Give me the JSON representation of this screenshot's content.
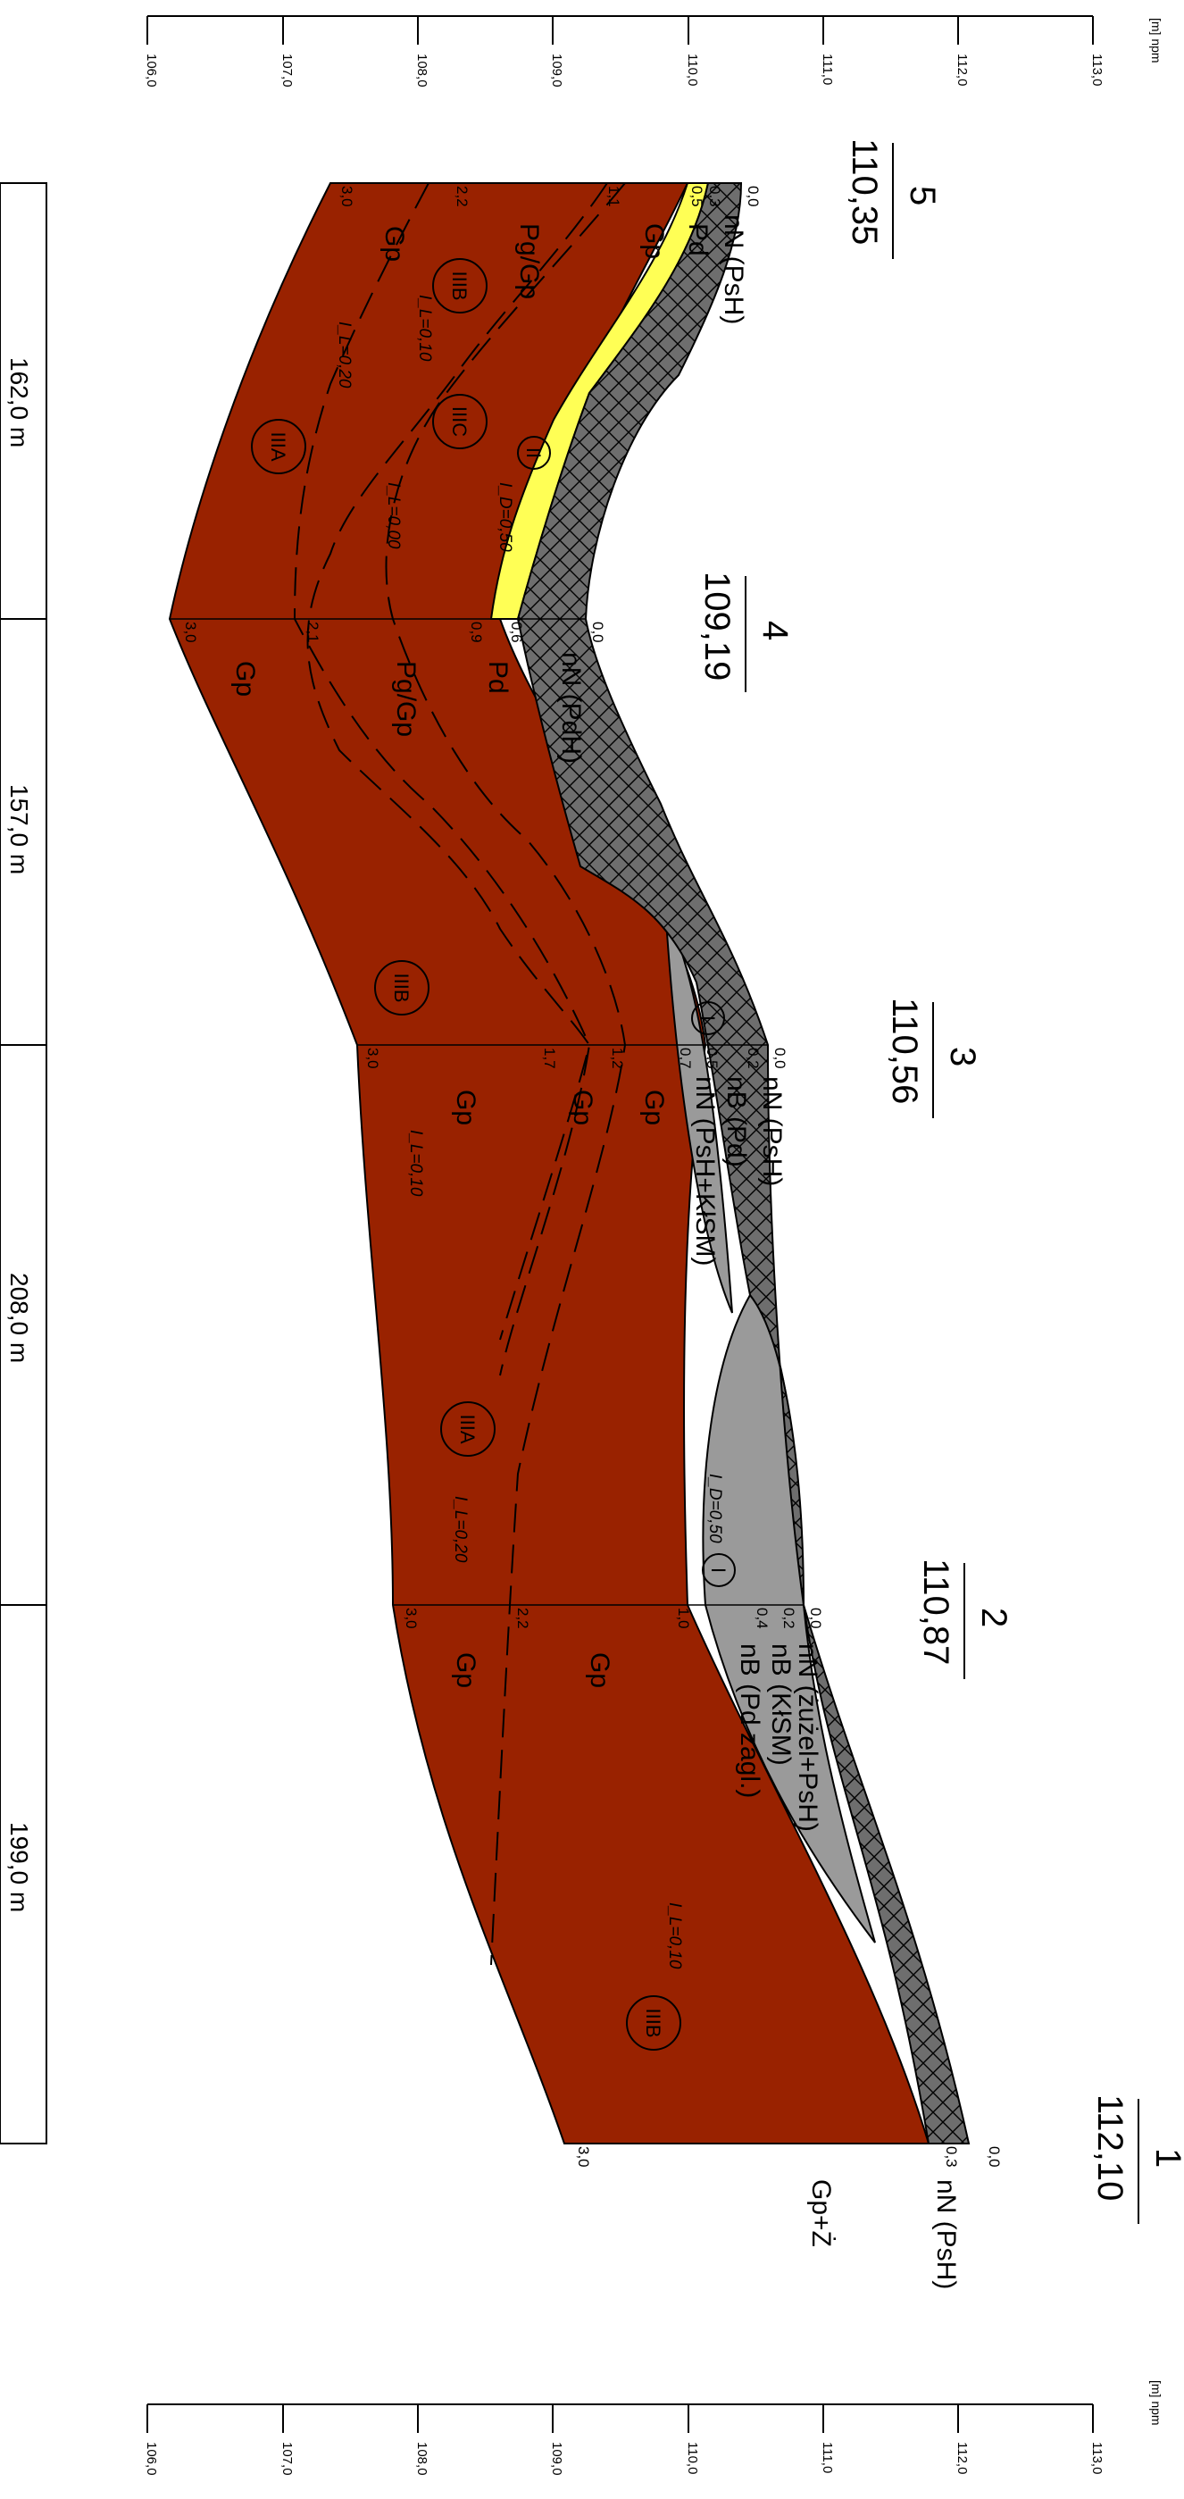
{
  "colors": {
    "clay": "#992200",
    "sand": "#ffff55",
    "fill_gray": "#6e6e6e",
    "fill_light": "#9a9a9a",
    "outline": "#000000"
  },
  "scale": {
    "unit": "[m] npm",
    "ticks": [
      "106,0",
      "107,0",
      "108,0",
      "109,0",
      "110,0",
      "111,0",
      "112,0",
      "113,0"
    ]
  },
  "distances": [
    "162,0 m",
    "157,0 m",
    "208,0 m",
    "199,0 m"
  ],
  "boreholes": [
    {
      "number": "5",
      "elevation": "110,35",
      "depths": [
        "0,0",
        "0,3",
        "0,5",
        "1,1",
        "2,2",
        "3,0"
      ],
      "layers": [
        "nN (PsH)",
        "Pd"
      ]
    },
    {
      "number": "4",
      "elevation": "109,19",
      "depths": [
        "0,0",
        "0,6",
        "0,9",
        "2,1",
        "3,0"
      ],
      "layers": [
        "nN (PdH)",
        "Pd"
      ]
    },
    {
      "number": "3",
      "elevation": "110,56",
      "depths": [
        "0,0",
        "0,2",
        "0,5",
        "0,7",
        "1,2",
        "1,7",
        "3,0"
      ],
      "layers": [
        "nN (PsH)",
        "nB (Pd)",
        "nN (PsH+KłSM)"
      ]
    },
    {
      "number": "2",
      "elevation": "110,87",
      "depths": [
        "0,0",
        "0,2",
        "0,4",
        "1,0",
        "2,2",
        "3,0"
      ],
      "layers": [
        "nN (żużel+PsH)",
        "nB (KłSM)",
        "nB (Pd zagl.)"
      ]
    },
    {
      "number": "1",
      "elevation": "112,10",
      "depths": [
        "0,0",
        "0,3",
        "3,0"
      ],
      "layers": [
        "nN (PsH)"
      ],
      "extra": "Gp+Ż"
    }
  ],
  "labels": {
    "soil": [
      "Gp",
      "Pg/Gp",
      "Gp",
      "Pg/Gp",
      "Gp",
      "Gp",
      "Gp",
      "Gp",
      "Gp",
      "Gp",
      "Gp"
    ],
    "indices": [
      "I_L=0,10",
      "I_L=0,20",
      "I_L=0,00",
      "I_D=0,50",
      "I_L=0,10",
      "I_D=0,50",
      "I_L=0,20",
      "I_L=0,10"
    ],
    "circles": [
      "IIIB",
      "IIIC",
      "IIIA",
      "II",
      "IIIB",
      "I",
      "IIIA",
      "I",
      "IIIB"
    ]
  }
}
